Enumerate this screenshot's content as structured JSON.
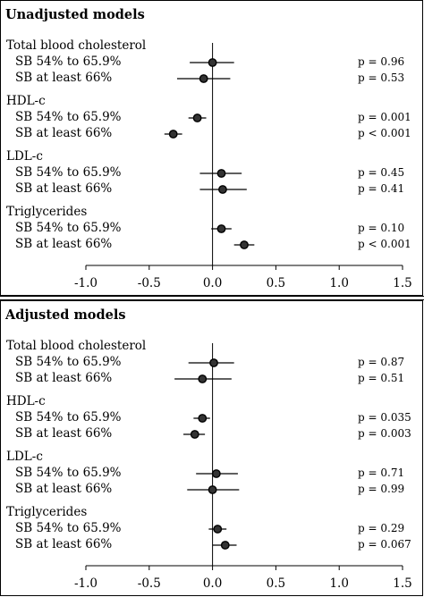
{
  "chart_data": [
    {
      "type": "forest",
      "title": "Unadjusted models",
      "xlim": [
        -1.0,
        1.5
      ],
      "xticks": [
        "-1.0",
        "-0.5",
        "0.0",
        "0.5",
        "1.0",
        "1.5"
      ],
      "groups": [
        {
          "label": "Total blood cholesterol",
          "rows": [
            {
              "label": "SB 54% to 65.9%",
              "est": 0.0,
              "lo": -0.18,
              "hi": 0.17,
              "p": "p = 0.96"
            },
            {
              "label": "SB at least 66%",
              "est": -0.07,
              "lo": -0.28,
              "hi": 0.14,
              "p": "p = 0.53"
            }
          ]
        },
        {
          "label": "HDL-c",
          "rows": [
            {
              "label": "SB 54% to 65.9%",
              "est": -0.12,
              "lo": -0.19,
              "hi": -0.05,
              "p": "p = 0.001"
            },
            {
              "label": "SB at least 66%",
              "est": -0.31,
              "lo": -0.38,
              "hi": -0.24,
              "p": "p < 0.001"
            }
          ]
        },
        {
          "label": "LDL-c",
          "rows": [
            {
              "label": "SB 54% to 65.9%",
              "est": 0.07,
              "lo": -0.1,
              "hi": 0.23,
              "p": "p = 0.45"
            },
            {
              "label": "SB at least 66%",
              "est": 0.08,
              "lo": -0.1,
              "hi": 0.27,
              "p": "p = 0.41"
            }
          ]
        },
        {
          "label": "Triglycerides",
          "rows": [
            {
              "label": "SB 54% to 65.9%",
              "est": 0.07,
              "lo": -0.01,
              "hi": 0.15,
              "p": "p = 0.10"
            },
            {
              "label": "SB at least 66%",
              "est": 0.25,
              "lo": 0.17,
              "hi": 0.33,
              "p": "p < 0.001"
            }
          ]
        }
      ]
    },
    {
      "type": "forest",
      "title": "Adjusted models",
      "xlim": [
        -1.0,
        1.5
      ],
      "xticks": [
        "-1.0",
        "-0.5",
        "0.0",
        "0.5",
        "1.0",
        "1.5"
      ],
      "groups": [
        {
          "label": "Total blood cholesterol",
          "rows": [
            {
              "label": "SB 54% to 65.9%",
              "est": 0.01,
              "lo": -0.19,
              "hi": 0.17,
              "p": "p = 0.87"
            },
            {
              "label": "SB at least 66%",
              "est": -0.08,
              "lo": -0.3,
              "hi": 0.15,
              "p": "p = 0.51"
            }
          ]
        },
        {
          "label": "HDL-c",
          "rows": [
            {
              "label": "SB 54% to 65.9%",
              "est": -0.08,
              "lo": -0.15,
              "hi": -0.02,
              "p": "p = 0.035"
            },
            {
              "label": "SB at least 66%",
              "est": -0.14,
              "lo": -0.23,
              "hi": -0.06,
              "p": "p = 0.003"
            }
          ]
        },
        {
          "label": "LDL-c",
          "rows": [
            {
              "label": "SB 54% to 65.9%",
              "est": 0.03,
              "lo": -0.13,
              "hi": 0.2,
              "p": "p = 0.71"
            },
            {
              "label": "SB at least 66%",
              "est": 0.0,
              "lo": -0.2,
              "hi": 0.21,
              "p": "p = 0.99"
            }
          ]
        },
        {
          "label": "Triglycerides",
          "rows": [
            {
              "label": "SB 54% to 65.9%",
              "est": 0.04,
              "lo": -0.03,
              "hi": 0.11,
              "p": "p = 0.29"
            },
            {
              "label": "SB at least 66%",
              "est": 0.1,
              "lo": 0.0,
              "hi": 0.19,
              "p": "p = 0.067"
            }
          ]
        }
      ]
    }
  ]
}
